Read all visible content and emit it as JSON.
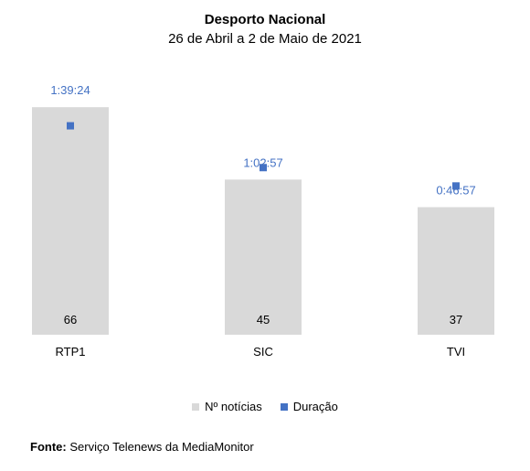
{
  "chart_data": {
    "type": "bar",
    "title": "Desporto Nacional",
    "subtitle": "26 de Abril a 2 de Maio de 2021",
    "categories": [
      "RTP1",
      "SIC",
      "TVI"
    ],
    "series": [
      {
        "name": "Nº notícias",
        "type": "bar",
        "color": "#d9d9d9",
        "values": [
          66,
          45,
          37
        ]
      },
      {
        "name": "Duração",
        "type": "scatter",
        "color": "#4472c4",
        "values": [
          "1:39:24",
          "1:02:57",
          "0:46:57"
        ]
      }
    ],
    "grid": false,
    "legend_position": "bottom"
  },
  "source": {
    "label": "Fonte:",
    "text": "Serviço Telenews da MediaMonitor"
  }
}
